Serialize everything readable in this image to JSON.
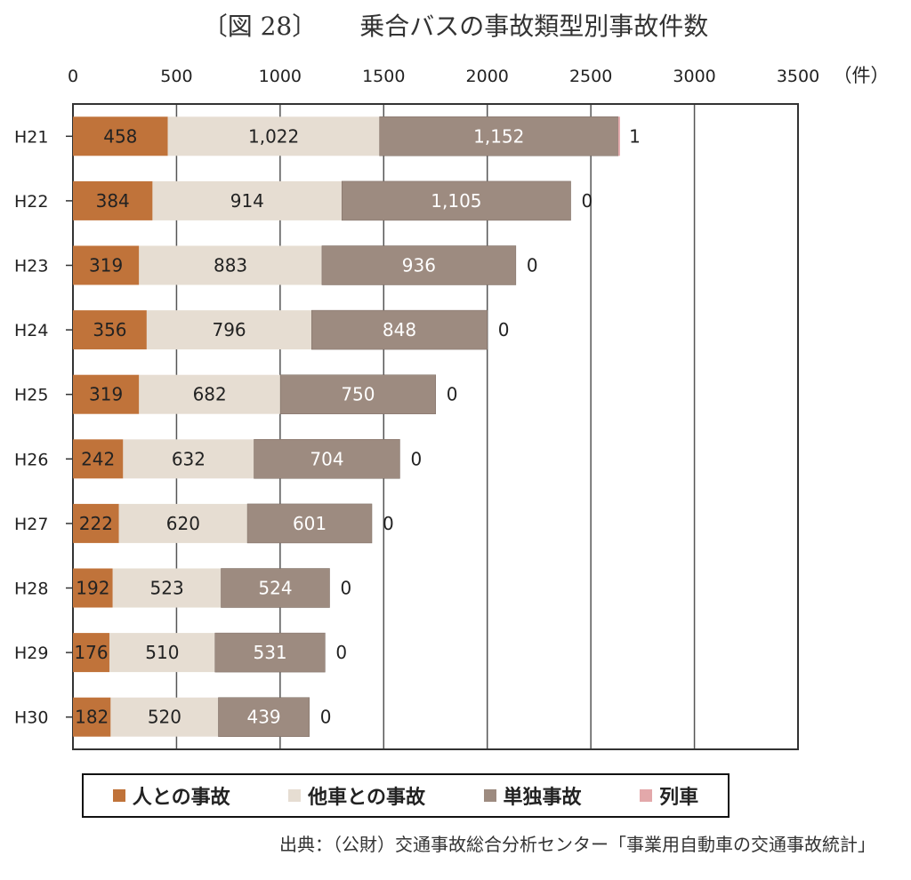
{
  "figure_label": "〔図 28〕",
  "chart_data": {
    "type": "bar",
    "orientation": "horizontal",
    "stacked": true,
    "title": "乗合バスの事故類型別事故件数",
    "unit_label": "（件）",
    "xlim": [
      0,
      3500
    ],
    "xticks": [
      0,
      500,
      1000,
      1500,
      2000,
      2500,
      3000,
      3500
    ],
    "categories": [
      "H21",
      "H22",
      "H23",
      "H24",
      "H25",
      "H26",
      "H27",
      "H28",
      "H29",
      "H30"
    ],
    "series": [
      {
        "name": "人との事故",
        "color": "#c0733a",
        "values": [
          458,
          384,
          319,
          356,
          319,
          242,
          222,
          192,
          176,
          182
        ],
        "labels": [
          "458",
          "384",
          "319",
          "356",
          "319",
          "242",
          "222",
          "192",
          "176",
          "182"
        ]
      },
      {
        "name": "他車との事故",
        "color": "#e6ddd2",
        "values": [
          1022,
          914,
          883,
          796,
          682,
          632,
          620,
          523,
          510,
          520
        ],
        "labels": [
          "1,022",
          "914",
          "883",
          "796",
          "682",
          "632",
          "620",
          "523",
          "510",
          "520"
        ]
      },
      {
        "name": "単独事故",
        "color": "#9d8b80",
        "values": [
          1152,
          1105,
          936,
          848,
          750,
          704,
          601,
          524,
          531,
          439
        ],
        "labels": [
          "1,152",
          "1,105",
          "936",
          "848",
          "750",
          "704",
          "601",
          "524",
          "531",
          "439"
        ]
      },
      {
        "name": "列車",
        "color": "#e3a8aa",
        "values": [
          1,
          0,
          0,
          0,
          0,
          0,
          0,
          0,
          0,
          0
        ],
        "labels": [
          "1",
          "0",
          "0",
          "0",
          "0",
          "0",
          "0",
          "0",
          "0",
          "0"
        ]
      }
    ],
    "legend_position": "bottom",
    "grid": true
  },
  "source": "出典：（公財）交通事故総合分析センター「事業用自動車の交通事故統計」"
}
